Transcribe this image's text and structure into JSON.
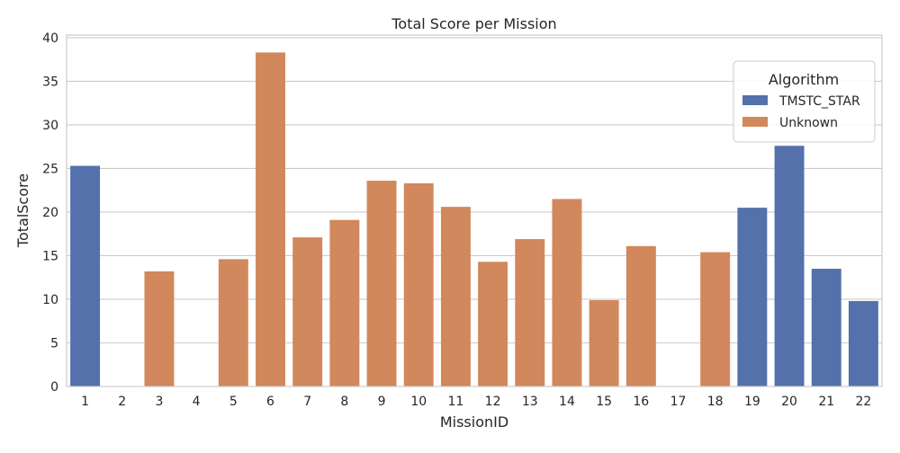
{
  "chart_data": {
    "type": "bar",
    "title": "Total Score per Mission",
    "xlabel": "MissionID",
    "ylabel": "TotalScore",
    "ylim": [
      0,
      40.3
    ],
    "yticks": [
      0,
      5,
      10,
      15,
      20,
      25,
      30,
      35,
      40
    ],
    "grid": "horizontal",
    "legend": {
      "title": "Algorithm",
      "placement": "top-right",
      "entries": [
        {
          "name": "TMSTC_STAR",
          "color": "#5471ab"
        },
        {
          "name": "Unknown",
          "color": "#d1885c"
        }
      ]
    },
    "categories": [
      "1",
      "2",
      "3",
      "4",
      "5",
      "6",
      "7",
      "8",
      "9",
      "10",
      "11",
      "12",
      "13",
      "14",
      "15",
      "16",
      "17",
      "18",
      "19",
      "20",
      "21",
      "22"
    ],
    "values": [
      25.3,
      0,
      13.2,
      0,
      14.6,
      38.3,
      17.1,
      19.1,
      23.6,
      23.3,
      20.6,
      14.3,
      16.9,
      21.5,
      9.9,
      16.1,
      0,
      15.4,
      20.5,
      27.6,
      13.5,
      9.8
    ],
    "algorithm": [
      "TMSTC_STAR",
      "Unknown",
      "Unknown",
      "Unknown",
      "Unknown",
      "Unknown",
      "Unknown",
      "Unknown",
      "Unknown",
      "Unknown",
      "Unknown",
      "Unknown",
      "Unknown",
      "Unknown",
      "Unknown",
      "Unknown",
      "Unknown",
      "Unknown",
      "TMSTC_STAR",
      "TMSTC_STAR",
      "TMSTC_STAR",
      "TMSTC_STAR"
    ]
  }
}
